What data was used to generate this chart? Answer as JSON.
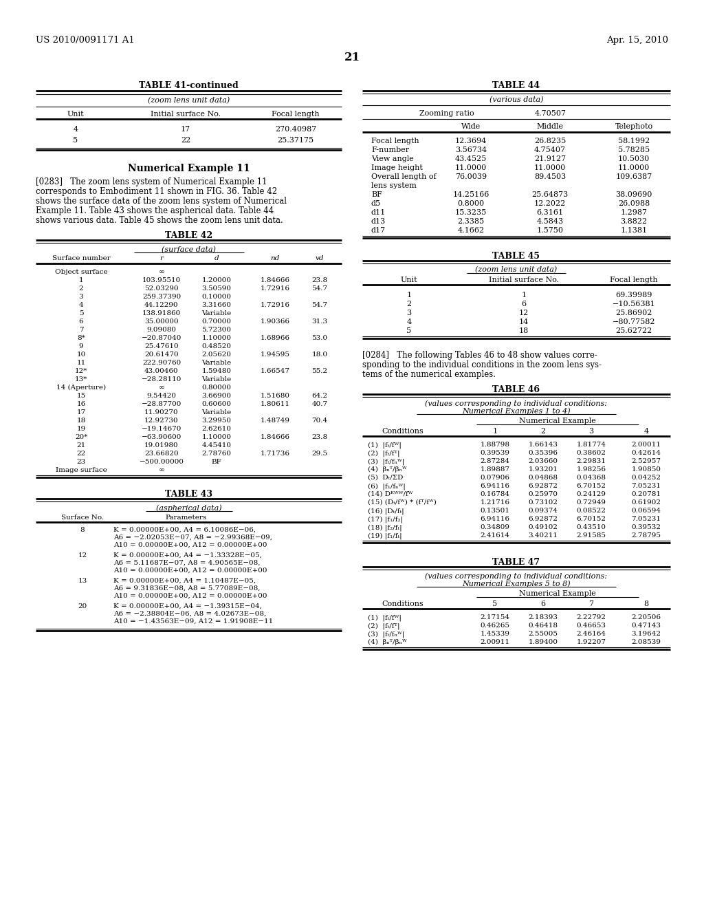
{
  "header_left": "US 2010/0091171 A1",
  "header_right": "Apr. 15, 2010",
  "page_number": "21",
  "background_color": "#ffffff",
  "table41_title": "TABLE 41-continued",
  "table41_subtitle": "(zoom lens unit data)",
  "table41_data": [
    [
      "4",
      "17",
      "270.40987"
    ],
    [
      "5",
      "22",
      "25.37175"
    ]
  ],
  "num_example_title": "Numerical Example 11",
  "table42_title": "TABLE 42",
  "table42_subtitle": "(surface data)",
  "table42_data": [
    [
      "Object surface",
      "∞",
      "",
      "",
      ""
    ],
    [
      "1",
      "103.95510",
      "1.20000",
      "1.84666",
      "23.8"
    ],
    [
      "2",
      "52.03290",
      "3.50590",
      "1.72916",
      "54.7"
    ],
    [
      "3",
      "259.37390",
      "0.10000",
      "",
      ""
    ],
    [
      "4",
      "44.12290",
      "3.31660",
      "1.72916",
      "54.7"
    ],
    [
      "5",
      "138.91860",
      "Variable",
      "",
      ""
    ],
    [
      "6",
      "35.00000",
      "0.70000",
      "1.90366",
      "31.3"
    ],
    [
      "7",
      "9.09080",
      "5.72300",
      "",
      ""
    ],
    [
      "8*",
      "−20.87040",
      "1.10000",
      "1.68966",
      "53.0"
    ],
    [
      "9",
      "25.47610",
      "0.48520",
      "",
      ""
    ],
    [
      "10",
      "20.61470",
      "2.05620",
      "1.94595",
      "18.0"
    ],
    [
      "11",
      "222.90760",
      "Variable",
      "",
      ""
    ],
    [
      "12*",
      "43.00460",
      "1.59480",
      "1.66547",
      "55.2"
    ],
    [
      "13*",
      "−28.28110",
      "Variable",
      "",
      ""
    ],
    [
      "14 (Aperture)",
      "∞",
      "0.80000",
      "",
      ""
    ],
    [
      "15",
      "9.54420",
      "3.66900",
      "1.51680",
      "64.2"
    ],
    [
      "16",
      "−28.87700",
      "0.60600",
      "1.80611",
      "40.7"
    ],
    [
      "17",
      "11.90270",
      "Variable",
      "",
      ""
    ],
    [
      "18",
      "12.92730",
      "3.29950",
      "1.48749",
      "70.4"
    ],
    [
      "19",
      "−19.14670",
      "2.62610",
      "",
      ""
    ],
    [
      "20*",
      "−63.90600",
      "1.10000",
      "1.84666",
      "23.8"
    ],
    [
      "21",
      "19.01980",
      "4.45410",
      "",
      ""
    ],
    [
      "22",
      "23.66820",
      "2.78760",
      "1.71736",
      "29.5"
    ],
    [
      "23",
      "−500.00000",
      "BF",
      "",
      ""
    ],
    [
      "Image surface",
      "∞",
      "",
      "",
      ""
    ]
  ],
  "table43_title": "TABLE 43",
  "table43_subtitle": "(aspherical data)",
  "table43_data": [
    [
      "8",
      "K = 0.00000E+00, A4 = 6.10086E−06,\nA6 = −2.02053E−07, A8 = −2.99368E−09,\nA10 = 0.00000E+00, A12 = 0.00000E+00"
    ],
    [
      "12",
      "K = 0.00000E+00, A4 = −1.33328E−05,\nA6 = 5.11687E−07, A8 = 4.90565E−08,\nA10 = 0.00000E+00, A12 = 0.00000E+00"
    ],
    [
      "13",
      "K = 0.00000E+00, A4 = 1.10487E−05,\nA6 = 9.31836E−08, A8 = 5.77089E−08,\nA10 = 0.00000E+00, A12 = 0.00000E+00"
    ],
    [
      "20",
      "K = 0.00000E+00, A4 = −1.39315E−04,\nA6 = −2.38804E−06, A8 = 4.02673E−08,\nA10 = −1.43563E−09, A12 = 1.91908E−11"
    ]
  ],
  "table44_title": "TABLE 44",
  "table44_subtitle": "(various data)",
  "table44_zoom_label": "Zooming ratio",
  "table44_zoom_value": "4.70507",
  "table44_data": [
    [
      "Focal length",
      "12.3694",
      "26.8235",
      "58.1992"
    ],
    [
      "F-number",
      "3.56734",
      "4.75407",
      "5.78285"
    ],
    [
      "View angle",
      "43.4525",
      "21.9127",
      "10.5030"
    ],
    [
      "Image height",
      "11.0000",
      "11.0000",
      "11.0000"
    ],
    [
      "Overall length of",
      "76.0039",
      "89.4503",
      "109.6387"
    ],
    [
      "lens system",
      "",
      "",
      ""
    ],
    [
      "BF",
      "14.25166",
      "25.64873",
      "38.09690"
    ],
    [
      "d5",
      "0.8000",
      "12.2022",
      "26.0988"
    ],
    [
      "d11",
      "15.3235",
      "6.3161",
      "1.2987"
    ],
    [
      "d13",
      "2.3385",
      "4.5843",
      "3.8822"
    ],
    [
      "d17",
      "4.1662",
      "1.5750",
      "1.1381"
    ]
  ],
  "table45_title": "TABLE 45",
  "table45_subtitle": "(zoom lens unit data)",
  "table45_data": [
    [
      "1",
      "1",
      "69.39989"
    ],
    [
      "2",
      "6",
      "−10.56381"
    ],
    [
      "3",
      "12",
      "25.86902"
    ],
    [
      "4",
      "14",
      "−80.77582"
    ],
    [
      "5",
      "18",
      "25.62722"
    ]
  ],
  "table46_title": "TABLE 46",
  "table46_sub1": "(values corresponding to individual conditions:",
  "table46_sub2": "Numerical Examples 1 to 4)",
  "table46_conditions": [
    "(1)  |fₜ/fᵂ|",
    "(2)  |fₜ/fᵀ|",
    "(3)  |fₜ/fₙᵂ|",
    "(4)  βₙᵀ/βₙᵂ",
    "(5)  Dₜ/ΣD",
    "(6)  |f₁/fₙᵂ|",
    "(14) Dᴷᵂᵂ/fᵂ",
    "(15) (Dₜ/fᵂ) * (fᵀ/fᵂ)",
    "(16) |Dₜ/fₜ|",
    "(17) |f₁/f₂|",
    "(18) |f₂/fₜ|",
    "(19) |f₁/fₜ|"
  ],
  "table46_data": [
    [
      "1.88798",
      "1.66143",
      "1.81774",
      "2.00011"
    ],
    [
      "0.39539",
      "0.35396",
      "0.38602",
      "0.42614"
    ],
    [
      "2.87284",
      "2.03660",
      "2.29831",
      "2.52957"
    ],
    [
      "1.89887",
      "1.93201",
      "1.98256",
      "1.90850"
    ],
    [
      "0.07906",
      "0.04868",
      "0.04368",
      "0.04252"
    ],
    [
      "6.94116",
      "6.92872",
      "6.70152",
      "7.05231"
    ],
    [
      "0.16784",
      "0.25970",
      "0.24129",
      "0.20781"
    ],
    [
      "1.21716",
      "0.73102",
      "0.72949",
      "0.61902"
    ],
    [
      "0.13501",
      "0.09374",
      "0.08522",
      "0.06594"
    ],
    [
      "6.94116",
      "6.92872",
      "6.70152",
      "7.05231"
    ],
    [
      "0.34809",
      "0.49102",
      "0.43510",
      "0.39532"
    ],
    [
      "2.41614",
      "3.40211",
      "2.91585",
      "2.78795"
    ]
  ],
  "table47_title": "TABLE 47",
  "table47_sub1": "(values corresponding to individual conditions:",
  "table47_sub2": "Numerical Examples 5 to 8)",
  "table47_conditions": [
    "(1)  |fₜ/fᵂ|",
    "(2)  |fₜ/fᵀ|",
    "(3)  |fₜ/fₙᵂ|",
    "(4)  βₙᵀ/βₙᵂ"
  ],
  "table47_data": [
    [
      "2.17154",
      "2.18393",
      "2.22792",
      "2.20506"
    ],
    [
      "0.46265",
      "0.46418",
      "0.46653",
      "0.47143"
    ],
    [
      "1.45339",
      "2.55005",
      "2.46164",
      "3.19642"
    ],
    [
      "2.00911",
      "1.89400",
      "1.92207",
      "2.08539"
    ]
  ]
}
